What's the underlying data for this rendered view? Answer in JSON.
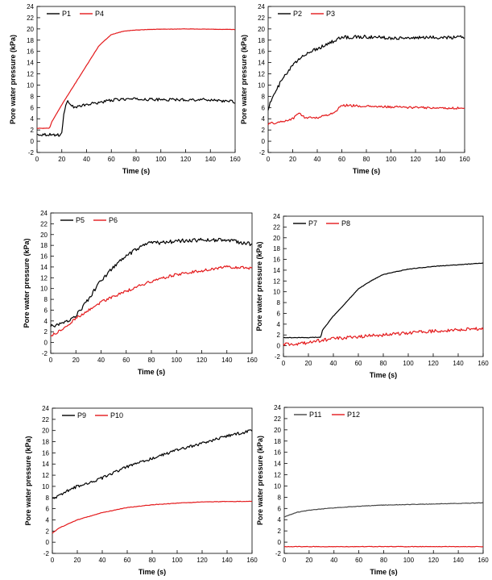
{
  "chart_data": [
    {
      "type": "line",
      "id": "a",
      "xlabel": "Time (s)",
      "ylabel": "Pore water pressure (kPa)",
      "xlim": [
        0,
        160
      ],
      "ylim": [
        -2,
        24
      ],
      "xticks": [
        0,
        20,
        40,
        60,
        80,
        100,
        120,
        140,
        160
      ],
      "yticks": [
        -2,
        0,
        2,
        4,
        6,
        8,
        10,
        12,
        14,
        16,
        18,
        20,
        22,
        24
      ],
      "grid": false,
      "legend": "top-left",
      "series": [
        {
          "name": "P1",
          "color": "#000000",
          "x": [
            0,
            10,
            18,
            20,
            22,
            25,
            30,
            40,
            50,
            60,
            70,
            80,
            100,
            120,
            140,
            150,
            160
          ],
          "y": [
            1.2,
            1.2,
            1.1,
            1.5,
            5.5,
            7.2,
            6.0,
            6.5,
            6.9,
            7.3,
            7.5,
            7.5,
            7.4,
            7.4,
            7.4,
            7.2,
            7.0
          ],
          "noise": 0.25
        },
        {
          "name": "P4",
          "color": "#e41a1c",
          "x": [
            0,
            10,
            12,
            20,
            30,
            40,
            50,
            60,
            70,
            80,
            90,
            100,
            120,
            140,
            160
          ],
          "y": [
            2.3,
            2.3,
            3.5,
            6.5,
            10.0,
            13.5,
            17.0,
            19.0,
            19.6,
            19.8,
            19.9,
            19.95,
            20.0,
            19.95,
            19.9
          ],
          "noise": 0.03
        }
      ]
    },
    {
      "type": "line",
      "id": "b",
      "xlabel": "Time (s)",
      "ylabel": "Pore water pressure (kPa)",
      "xlim": [
        0,
        160
      ],
      "ylim": [
        -2,
        24
      ],
      "xticks": [
        0,
        20,
        40,
        60,
        80,
        100,
        120,
        140,
        160
      ],
      "yticks": [
        -2,
        0,
        2,
        4,
        6,
        8,
        10,
        12,
        14,
        16,
        18,
        20,
        22,
        24
      ],
      "grid": false,
      "legend": "top-left",
      "series": [
        {
          "name": "P2",
          "color": "#000000",
          "x": [
            0,
            2,
            10,
            20,
            30,
            40,
            50,
            60,
            80,
            100,
            120,
            140,
            160
          ],
          "y": [
            5.8,
            7.0,
            10.5,
            13.5,
            15.5,
            16.5,
            17.5,
            18.5,
            18.6,
            18.4,
            18.4,
            18.5,
            18.5
          ],
          "noise": 0.3
        },
        {
          "name": "P3",
          "color": "#e41a1c",
          "x": [
            0,
            10,
            20,
            25,
            30,
            40,
            50,
            55,
            60,
            65,
            80,
            100,
            120,
            140,
            160
          ],
          "y": [
            3.1,
            3.4,
            4.0,
            5.0,
            4.2,
            4.2,
            4.8,
            5.3,
            6.4,
            6.4,
            6.2,
            6.1,
            6.0,
            5.9,
            5.9
          ],
          "noise": 0.2
        }
      ]
    },
    {
      "type": "line",
      "id": "c",
      "xlabel": "Time (s)",
      "ylabel": "Pore water pressure (kPa)",
      "xlim": [
        0,
        160
      ],
      "ylim": [
        -2,
        24
      ],
      "xticks": [
        0,
        20,
        40,
        60,
        80,
        100,
        120,
        140,
        160
      ],
      "yticks": [
        -2,
        0,
        2,
        4,
        6,
        8,
        10,
        12,
        14,
        16,
        18,
        20,
        22,
        24
      ],
      "grid": false,
      "legend": "top-left",
      "series": [
        {
          "name": "P5",
          "color": "#000000",
          "x": [
            0,
            10,
            20,
            30,
            40,
            50,
            60,
            70,
            80,
            90,
            100,
            120,
            140,
            150,
            160
          ],
          "y": [
            3.0,
            3.5,
            5.0,
            8.0,
            11.5,
            14.0,
            16.0,
            17.5,
            18.5,
            18.5,
            18.8,
            19.0,
            19.0,
            18.6,
            18.2
          ],
          "noise": 0.35
        },
        {
          "name": "P6",
          "color": "#e41a1c",
          "x": [
            0,
            10,
            20,
            30,
            40,
            50,
            60,
            70,
            80,
            90,
            100,
            120,
            140,
            160
          ],
          "y": [
            1.2,
            2.5,
            4.5,
            6.0,
            7.5,
            8.5,
            9.5,
            10.5,
            11.3,
            12.0,
            12.6,
            13.3,
            14.0,
            13.8
          ],
          "noise": 0.25
        }
      ]
    },
    {
      "type": "line",
      "id": "d",
      "xlabel": "Time (s)",
      "ylabel": "Pore water pressure (kPa)",
      "xlim": [
        0,
        160
      ],
      "ylim": [
        -2,
        24
      ],
      "xticks": [
        0,
        20,
        40,
        60,
        80,
        100,
        120,
        140,
        160
      ],
      "yticks": [
        -2,
        0,
        2,
        4,
        6,
        8,
        10,
        12,
        14,
        16,
        18,
        20,
        22,
        24
      ],
      "grid": false,
      "legend": "top-left",
      "series": [
        {
          "name": "P7",
          "color": "#000000",
          "x": [
            0,
            10,
            20,
            30,
            31,
            40,
            50,
            60,
            70,
            80,
            100,
            120,
            140,
            160
          ],
          "y": [
            1.5,
            1.5,
            1.5,
            1.6,
            2.8,
            5.5,
            8.0,
            10.5,
            12.0,
            13.2,
            14.2,
            14.7,
            15.0,
            15.3
          ],
          "noise": 0.05
        },
        {
          "name": "P8",
          "color": "#e41a1c",
          "x": [
            0,
            20,
            30,
            40,
            60,
            80,
            100,
            120,
            140,
            160
          ],
          "y": [
            0.2,
            0.5,
            1.0,
            1.3,
            1.7,
            2.0,
            2.4,
            2.7,
            3.0,
            3.2
          ],
          "noise": 0.3
        }
      ]
    },
    {
      "type": "line",
      "id": "e",
      "xlabel": "Time (s)",
      "ylabel": "Pore water pressure (kPa)",
      "xlim": [
        0,
        160
      ],
      "ylim": [
        -2,
        24
      ],
      "xticks": [
        0,
        20,
        40,
        60,
        80,
        100,
        120,
        140,
        160
      ],
      "yticks": [
        -2,
        0,
        2,
        4,
        6,
        8,
        10,
        12,
        14,
        16,
        18,
        20,
        22,
        24
      ],
      "grid": false,
      "legend": "top-left",
      "series": [
        {
          "name": "P9",
          "color": "#000000",
          "x": [
            0,
            5,
            10,
            20,
            40,
            60,
            80,
            100,
            120,
            140,
            160
          ],
          "y": [
            8.0,
            8.2,
            9.0,
            10.0,
            11.5,
            13.5,
            15.0,
            16.5,
            17.7,
            19.0,
            20.0
          ],
          "noise": 0.25
        },
        {
          "name": "P10",
          "color": "#e41a1c",
          "x": [
            0,
            5,
            10,
            20,
            40,
            60,
            80,
            100,
            120,
            140,
            160
          ],
          "y": [
            1.6,
            2.5,
            3.0,
            4.0,
            5.3,
            6.2,
            6.7,
            7.0,
            7.2,
            7.3,
            7.3
          ],
          "noise": 0.04
        }
      ]
    },
    {
      "type": "line",
      "id": "f",
      "xlabel": "Time (s)",
      "ylabel": "Pore water pressure (kPa)",
      "xlim": [
        0,
        160
      ],
      "ylim": [
        -2,
        24
      ],
      "xticks": [
        0,
        20,
        40,
        60,
        80,
        100,
        120,
        140,
        160
      ],
      "yticks": [
        -2,
        0,
        2,
        4,
        6,
        8,
        10,
        12,
        14,
        16,
        18,
        20,
        22,
        24
      ],
      "grid": false,
      "legend": "top-left",
      "series": [
        {
          "name": "P11",
          "color": "#444444",
          "x": [
            0,
            10,
            20,
            40,
            60,
            80,
            100,
            120,
            140,
            160
          ],
          "y": [
            4.5,
            5.3,
            5.7,
            6.1,
            6.4,
            6.6,
            6.7,
            6.8,
            6.9,
            7.0
          ],
          "noise": 0.04
        },
        {
          "name": "P12",
          "color": "#e41a1c",
          "x": [
            0,
            160
          ],
          "y": [
            -0.8,
            -0.8
          ],
          "noise": 0.04
        }
      ]
    }
  ]
}
